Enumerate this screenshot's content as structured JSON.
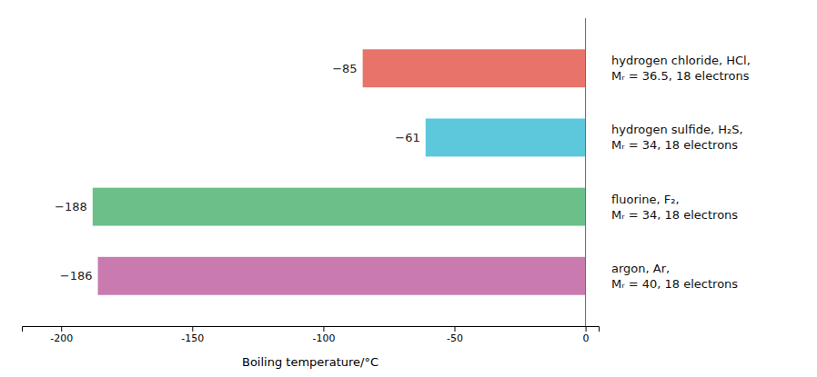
{
  "chart_data": {
    "type": "bar",
    "orientation": "horizontal",
    "categories": [
      "hydrogen chloride, HCl,\nMᵣ = 36.5, 18 electrons",
      "hydrogen sulfide, H₂S,\nMᵣ = 34, 18 electrons",
      "fluorine, F₂,\nMᵣ = 34, 18 electrons",
      "argon, Ar,\nMᵣ = 40, 18 electrons"
    ],
    "values": [
      -85,
      -61,
      -188,
      -186
    ],
    "value_labels": [
      "−85",
      "−61",
      "−188",
      "−186"
    ],
    "data_labels": true,
    "colors": [
      "#E8736A",
      "#5DC8DC",
      "#6DBF8A",
      "#C97AAE"
    ],
    "xlabel": "Boiling temperature/°C",
    "xlim": [
      -215,
      5
    ],
    "xticks": [
      -200,
      -150,
      -100,
      -50,
      0
    ],
    "grid": false
  }
}
